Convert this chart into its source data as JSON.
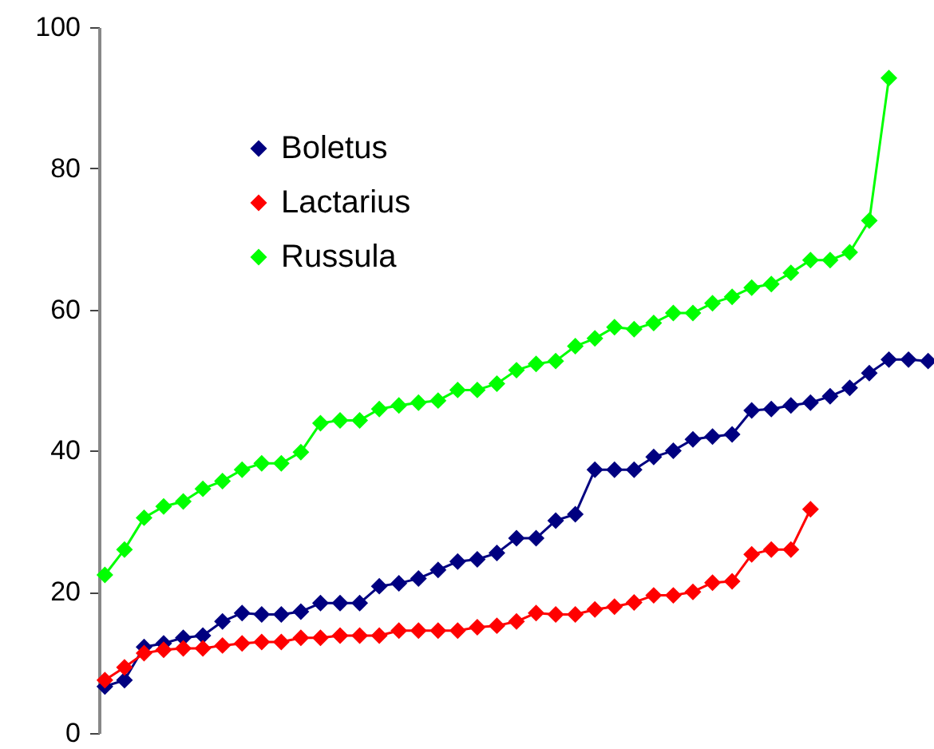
{
  "chart_data": {
    "type": "line",
    "categories": [
      null,
      null,
      null,
      null,
      null,
      null,
      null,
      null,
      null,
      null,
      null,
      null,
      null,
      null,
      null,
      null,
      null,
      null,
      null,
      null,
      null,
      null,
      null,
      null,
      null,
      null,
      null,
      null,
      null,
      null,
      null,
      null,
      null,
      null,
      null,
      null,
      null,
      null,
      null,
      null,
      null,
      null,
      null
    ],
    "series": [
      {
        "name": "Boletus",
        "color": "#000080",
        "values": [
          6.6,
          7.5,
          12.2,
          12.7,
          13.5,
          13.8,
          15.8,
          17.0,
          16.8,
          16.8,
          17.2,
          18.4,
          18.4,
          18.4,
          20.8,
          21.2,
          21.9,
          23.1,
          24.3,
          24.6,
          25.5,
          27.6,
          27.6,
          30.1,
          31.0,
          37.3,
          37.3,
          37.3,
          39.1,
          40.0,
          41.6,
          42.0,
          42.3,
          45.7,
          45.9,
          46.4,
          46.8,
          47.7,
          48.9,
          51.0,
          52.9,
          52.9,
          52.7
        ]
      },
      {
        "name": "Lactarius",
        "color": "#ff0000",
        "values": [
          7.5,
          9.3,
          11.3,
          11.8,
          12.0,
          12.0,
          12.4,
          12.7,
          12.9,
          12.9,
          13.5,
          13.5,
          13.8,
          13.8,
          13.8,
          14.5,
          14.5,
          14.5,
          14.5,
          15.0,
          15.2,
          15.8,
          17.0,
          16.8,
          16.8,
          17.5,
          17.9,
          18.5,
          19.5,
          19.5,
          20.0,
          21.3,
          21.5,
          25.3,
          26.0,
          26.0,
          31.7,
          null,
          null,
          null,
          null,
          null,
          null
        ]
      },
      {
        "name": "Russula",
        "color": "#00ff00",
        "values": [
          22.4,
          26.0,
          30.5,
          32.1,
          32.8,
          34.6,
          35.7,
          37.3,
          38.2,
          38.2,
          39.8,
          43.9,
          44.3,
          44.3,
          45.9,
          46.4,
          46.8,
          47.1,
          48.6,
          48.6,
          49.5,
          51.4,
          52.3,
          52.7,
          54.8,
          55.9,
          57.5,
          57.2,
          58.1,
          59.5,
          59.5,
          60.9,
          61.8,
          63.1,
          63.6,
          65.2,
          67.0,
          67.0,
          68.1,
          72.6,
          92.8,
          null,
          null
        ]
      }
    ],
    "ylim": [
      0,
      100
    ],
    "yticks": [
      0,
      20,
      40,
      60,
      80,
      100
    ],
    "marker": "diamond",
    "line_style": "solid",
    "grid": false,
    "legend": "top left",
    "tick_labels": "y"
  }
}
